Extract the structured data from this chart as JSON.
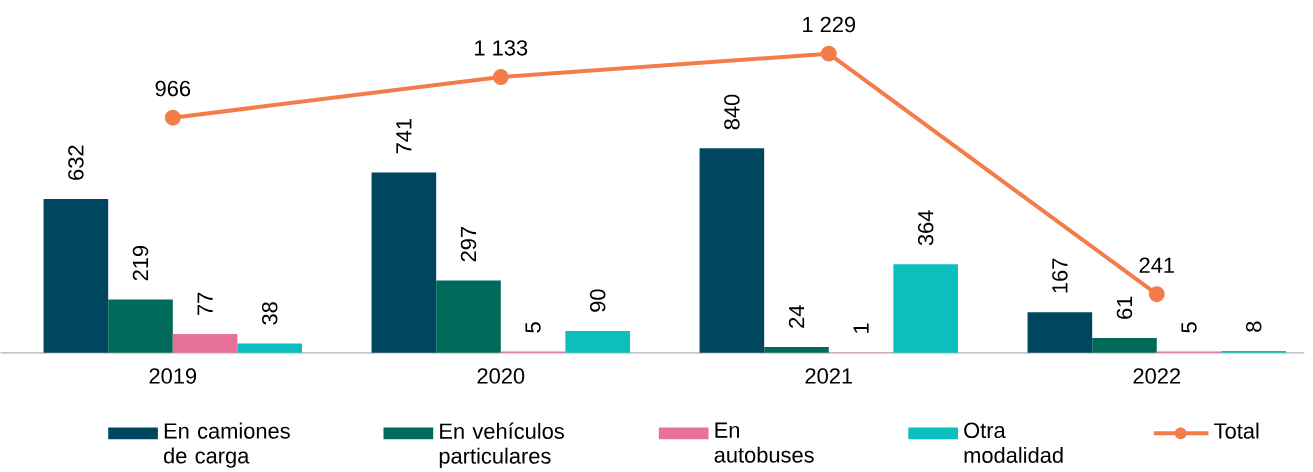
{
  "chart_data": {
    "type": "bar",
    "categories": [
      "2019",
      "2020",
      "2021",
      "2022"
    ],
    "series": [
      {
        "name": "En camiones de carga",
        "color": "#00465f",
        "values": [
          632,
          741,
          840,
          167
        ],
        "value_labels": [
          "632",
          "741",
          "840",
          "167"
        ]
      },
      {
        "name": "En vehículos particulares",
        "color": "#006b5a",
        "values": [
          219,
          297,
          24,
          61
        ],
        "value_labels": [
          "219",
          "297",
          "24",
          "61"
        ]
      },
      {
        "name": "En autobuses",
        "color": "#e8719a",
        "values": [
          77,
          5,
          1,
          5
        ],
        "value_labels": [
          "77",
          "5",
          "1",
          "5"
        ]
      },
      {
        "name": "Otra modalidad",
        "color": "#0abfbc",
        "values": [
          38,
          90,
          364,
          8
        ],
        "value_labels": [
          "38",
          "90",
          "364",
          "8"
        ]
      },
      {
        "name": "Total",
        "type": "line",
        "color": "#f47c48",
        "marker": "circle",
        "values": [
          966,
          1133,
          1229,
          241
        ],
        "value_labels": [
          "966",
          "1 133",
          "1 229",
          "241"
        ]
      }
    ],
    "tick_labels": "x",
    "legend": "bottom"
  }
}
